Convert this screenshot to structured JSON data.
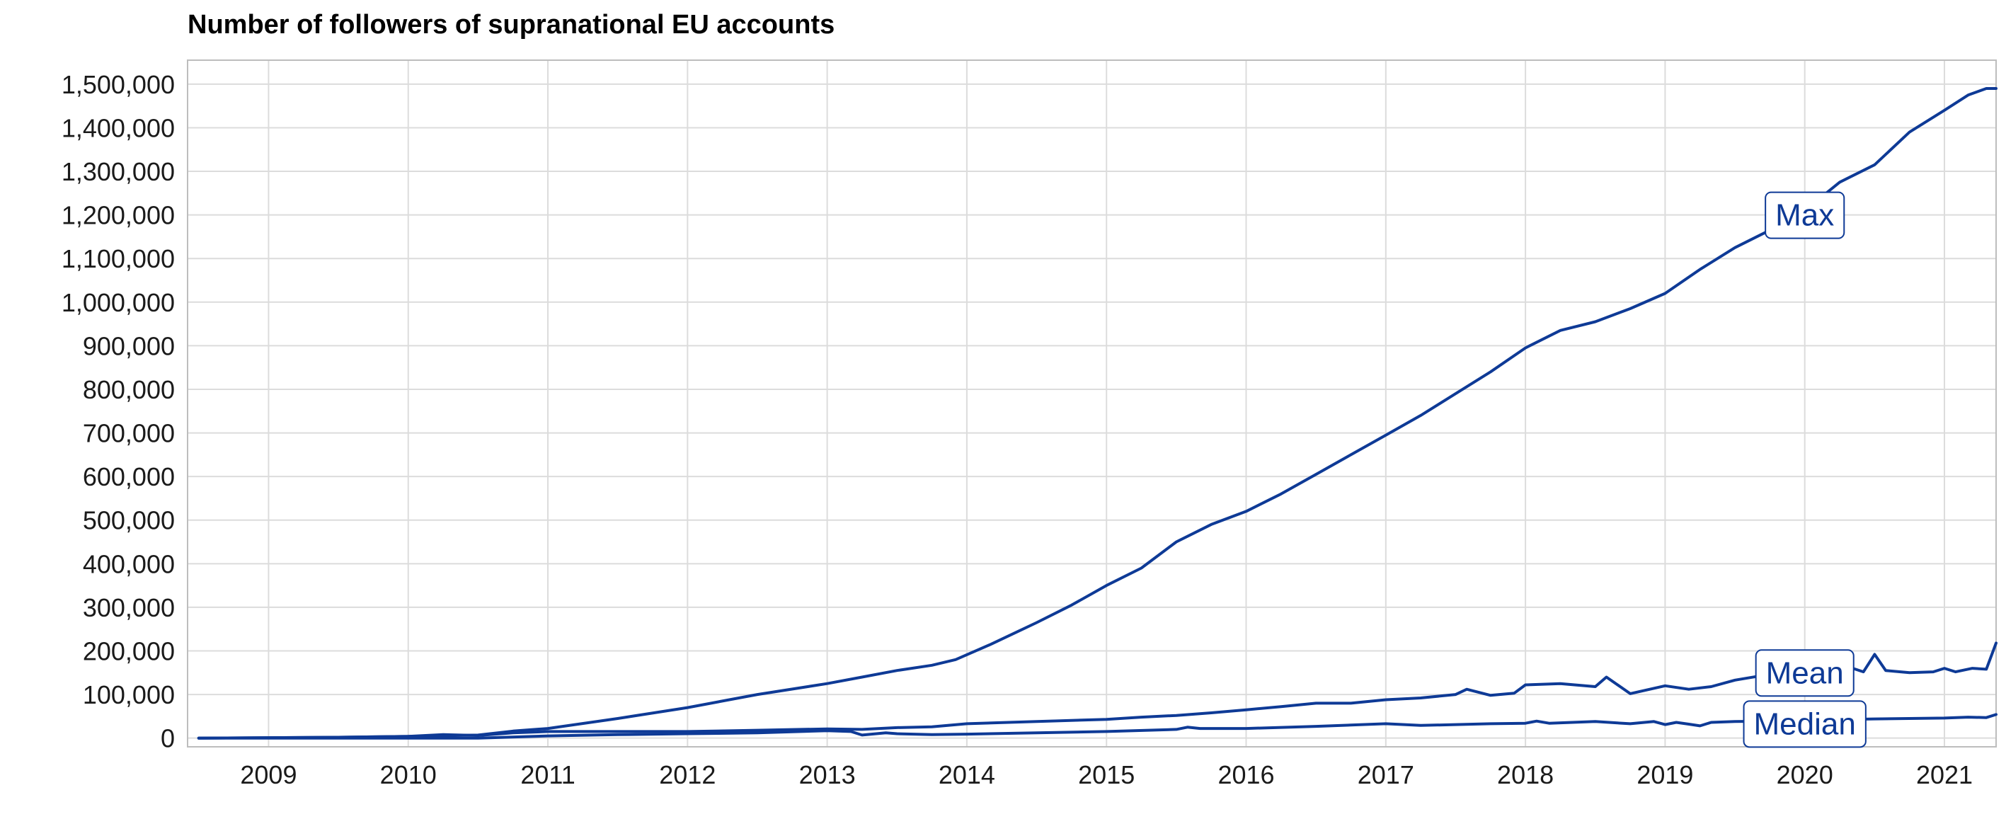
{
  "chart_data": {
    "type": "line",
    "title": "Number of followers of supranational EU accounts",
    "xlabel": "",
    "ylabel": "",
    "xlim": [
      2008.42,
      2021.37
    ],
    "ylim": [
      -20000,
      1555000
    ],
    "grid": true,
    "legend": "none (direct labels on series)",
    "line_color": "#0e3a96",
    "x_ticks": [
      "2009",
      "2010",
      "2011",
      "2012",
      "2013",
      "2014",
      "2015",
      "2016",
      "2017",
      "2018",
      "2019",
      "2020",
      "2021"
    ],
    "y_ticks": [
      "0",
      "100,000",
      "200,000",
      "300,000",
      "400,000",
      "500,000",
      "600,000",
      "700,000",
      "800,000",
      "900,000",
      "1,000,000",
      "1,100,000",
      "1,200,000",
      "1,300,000",
      "1,400,000",
      "1,500,000"
    ],
    "series": [
      {
        "name": "Max",
        "x": [
          2008.5,
          2009.0,
          2009.5,
          2010.0,
          2010.5,
          2010.75,
          2011.0,
          2011.5,
          2012.0,
          2012.5,
          2013.0,
          2013.25,
          2013.5,
          2013.75,
          2013.92,
          2014.17,
          2014.5,
          2014.75,
          2015.0,
          2015.25,
          2015.5,
          2015.75,
          2016.0,
          2016.25,
          2016.5,
          2016.75,
          2017.0,
          2017.25,
          2017.5,
          2017.75,
          2018.0,
          2018.25,
          2018.5,
          2018.75,
          2019.0,
          2019.25,
          2019.5,
          2019.75,
          2020.0,
          2020.25,
          2020.5,
          2020.75,
          2021.0,
          2021.17,
          2021.3,
          2021.37
        ],
        "values": [
          0,
          1000,
          2000,
          4000,
          7000,
          16000,
          22000,
          45000,
          70000,
          100000,
          125000,
          140000,
          155000,
          167000,
          180000,
          215000,
          265000,
          305000,
          350000,
          390000,
          450000,
          490000,
          520000,
          560000,
          605000,
          650000,
          695000,
          740000,
          790000,
          840000,
          895000,
          935000,
          955000,
          985000,
          1020000,
          1075000,
          1125000,
          1165000,
          1210000,
          1275000,
          1315000,
          1390000,
          1440000,
          1475000,
          1490000,
          1490000
        ]
      },
      {
        "name": "Mean",
        "x": [
          2008.5,
          2009.0,
          2009.5,
          2010.0,
          2010.25,
          2010.5,
          2010.75,
          2011.0,
          2011.5,
          2012.0,
          2012.5,
          2013.0,
          2013.25,
          2013.5,
          2013.75,
          2014.0,
          2014.5,
          2015.0,
          2015.25,
          2015.5,
          2015.75,
          2016.0,
          2016.25,
          2016.5,
          2016.75,
          2017.0,
          2017.25,
          2017.5,
          2017.58,
          2017.75,
          2017.92,
          2018.0,
          2018.25,
          2018.5,
          2018.58,
          2018.75,
          2019.0,
          2019.17,
          2019.33,
          2019.5,
          2019.67,
          2019.83,
          2020.0,
          2020.25,
          2020.42,
          2020.5,
          2020.58,
          2020.75,
          2020.92,
          2021.0,
          2021.08,
          2021.2,
          2021.3,
          2021.37
        ],
        "values": [
          0,
          1000,
          2000,
          4000,
          8000,
          6000,
          12000,
          15000,
          15000,
          15000,
          18000,
          21000,
          20000,
          24000,
          26000,
          33000,
          38000,
          43000,
          48000,
          52000,
          58000,
          65000,
          72000,
          80000,
          80000,
          88000,
          92000,
          100000,
          112000,
          98000,
          103000,
          122000,
          125000,
          118000,
          140000,
          102000,
          120000,
          112000,
          118000,
          133000,
          142000,
          150000,
          163000,
          170000,
          152000,
          192000,
          155000,
          150000,
          152000,
          160000,
          152000,
          160000,
          158000,
          218000
        ]
      },
      {
        "name": "Median",
        "x": [
          2008.5,
          2009.0,
          2009.5,
          2010.0,
          2010.5,
          2011.0,
          2011.5,
          2012.0,
          2012.5,
          2013.0,
          2013.17,
          2013.25,
          2013.42,
          2013.5,
          2013.75,
          2014.0,
          2014.5,
          2015.0,
          2015.5,
          2015.58,
          2015.67,
          2016.0,
          2016.5,
          2017.0,
          2017.25,
          2017.5,
          2017.75,
          2018.0,
          2018.08,
          2018.17,
          2018.5,
          2018.75,
          2018.92,
          2019.0,
          2019.08,
          2019.17,
          2019.25,
          2019.33,
          2019.5,
          2019.75,
          2020.0,
          2020.5,
          2021.0,
          2021.17,
          2021.3,
          2021.37
        ],
        "values": [
          0,
          0,
          0,
          0,
          0,
          5000,
          8000,
          10000,
          12000,
          17000,
          15000,
          7000,
          12000,
          10000,
          8000,
          9000,
          12000,
          15000,
          20000,
          25000,
          22000,
          22000,
          27000,
          33000,
          29000,
          31000,
          33000,
          34000,
          39000,
          34000,
          38000,
          33000,
          38000,
          31000,
          36000,
          32000,
          28000,
          36000,
          38000,
          39000,
          41000,
          44000,
          46000,
          48000,
          47000,
          54000
        ]
      }
    ]
  }
}
